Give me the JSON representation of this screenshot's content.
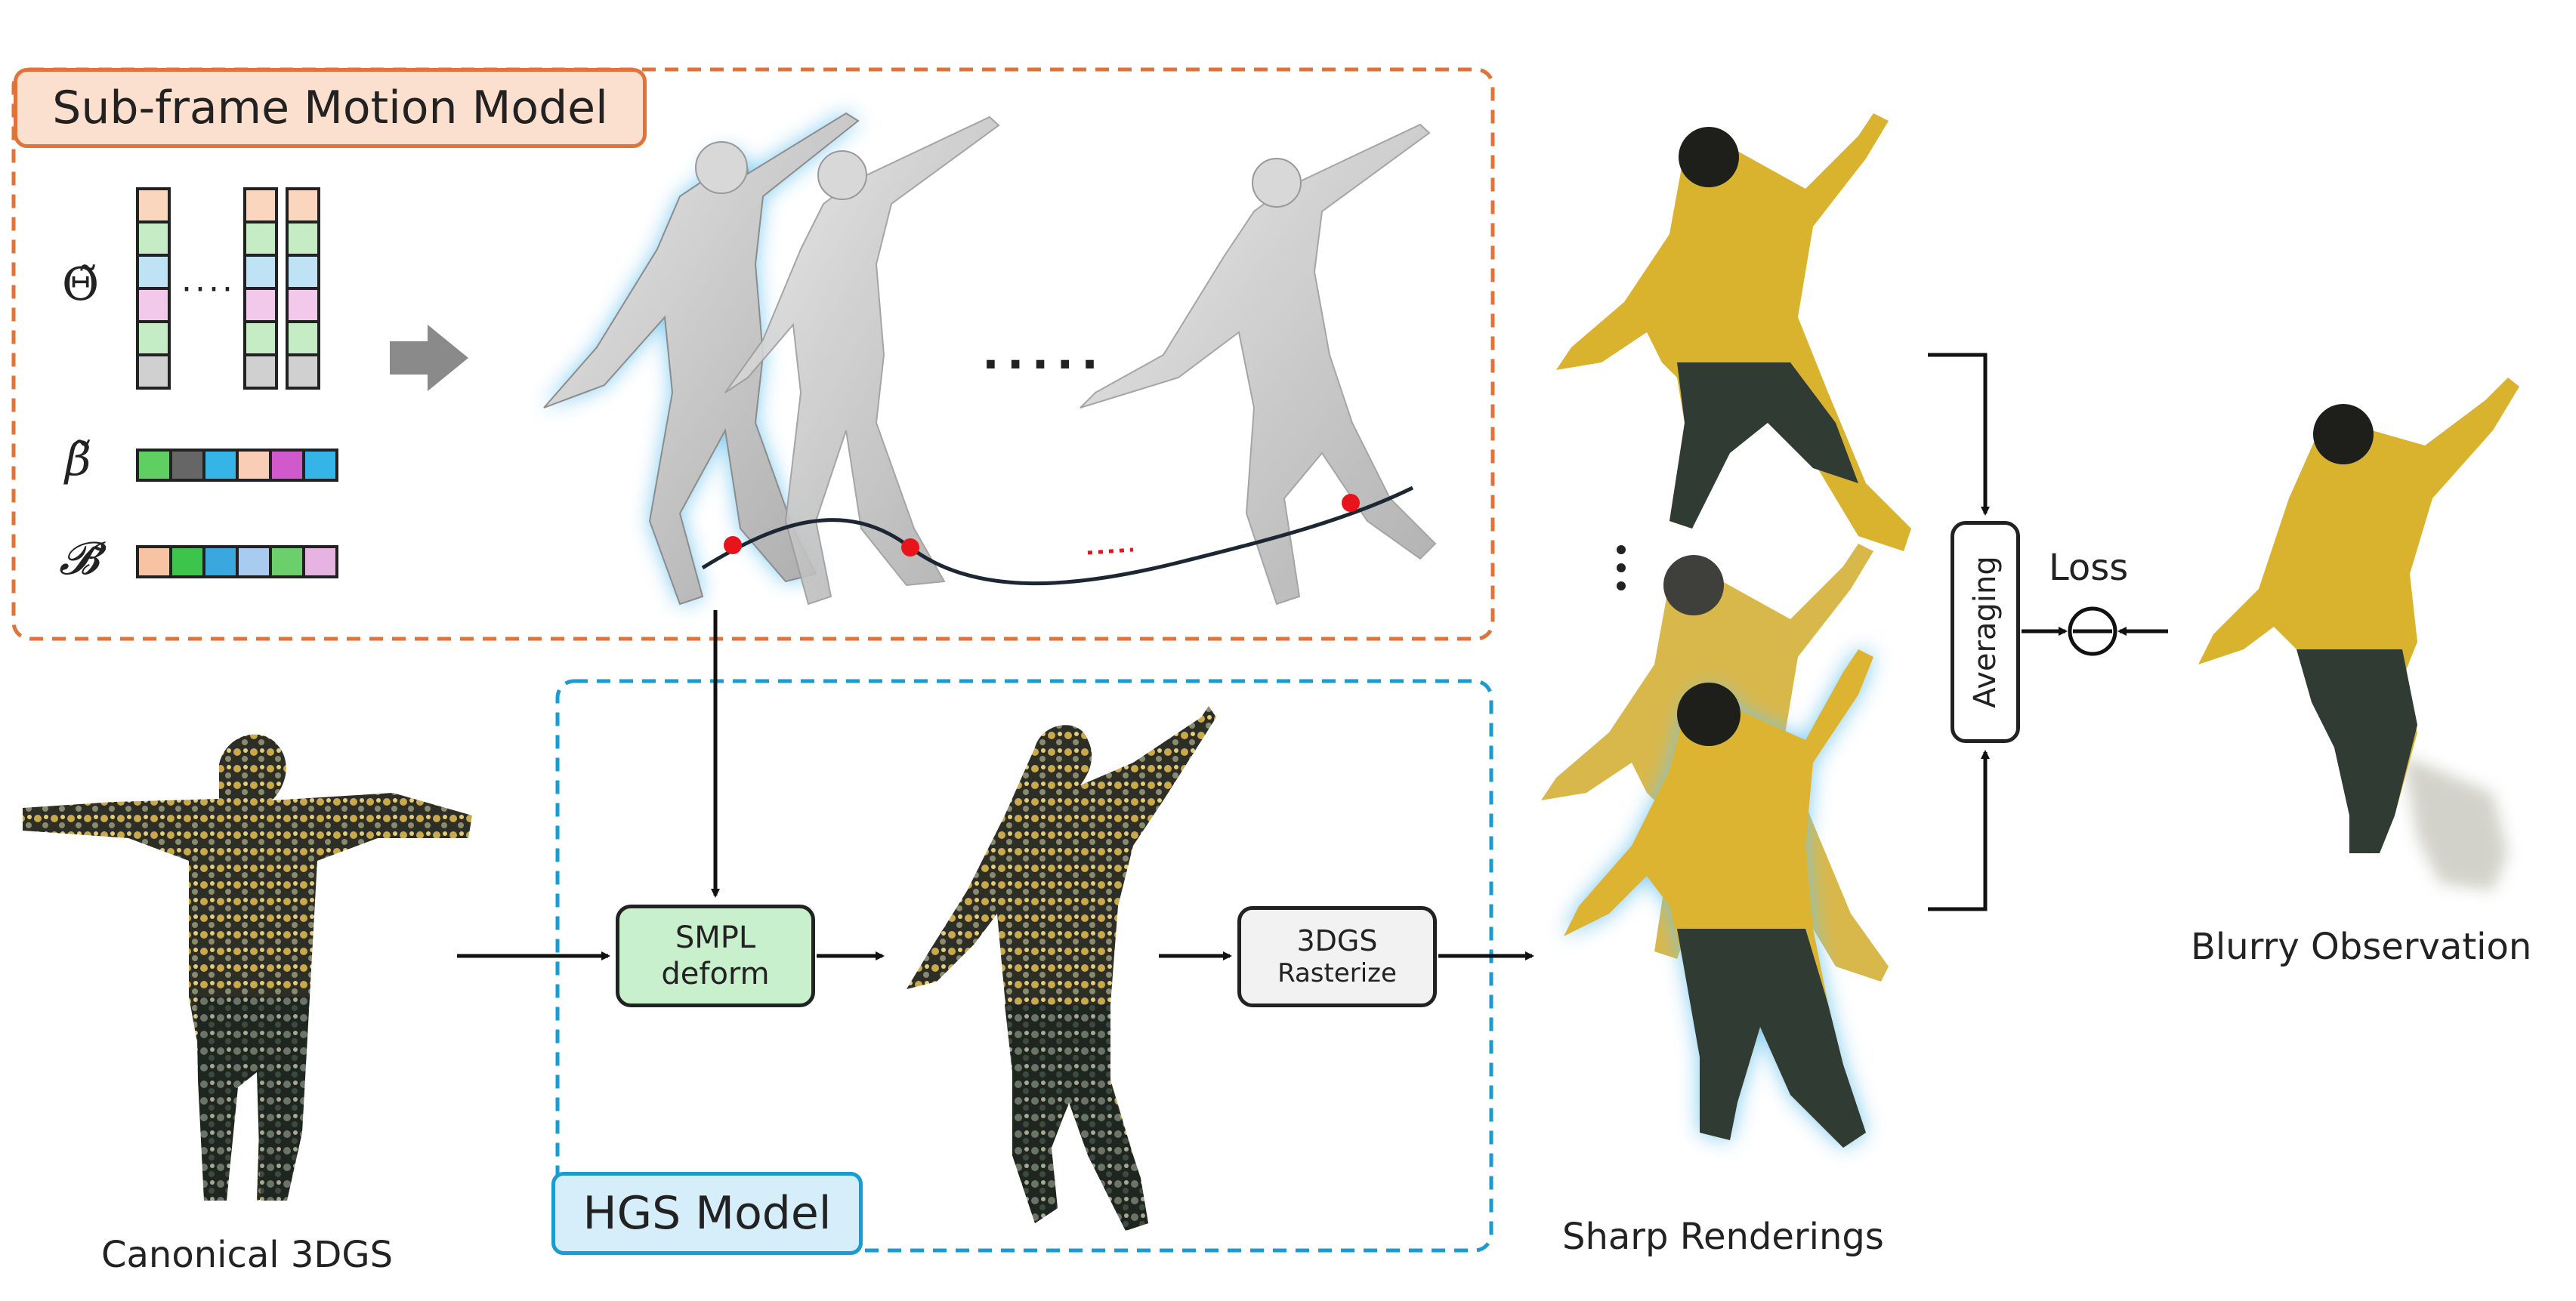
{
  "motion_model": {
    "title": "Sub-frame Motion Model"
  },
  "symbols": {
    "theta": "Θ̃",
    "beta": "β̃",
    "blend": "𝓑̃"
  },
  "hgs_model": {
    "title": "HGS Model"
  },
  "smpl_box": {
    "line1": "SMPL",
    "line2": "deform"
  },
  "raster_box": {
    "line1": "3DGS",
    "line2": "Rasterize"
  },
  "averaging": {
    "label": "Averaging"
  },
  "loss": {
    "label": "Loss"
  },
  "captions": {
    "canonical": "Canonical 3DGS",
    "sharp": "Sharp Renderings",
    "blurry": "Blurry Observation"
  },
  "colors": {
    "motion_border": "#e0733a",
    "hgs_border": "#1b9bd0",
    "smpl_fill": "#c9f0cc",
    "keypoint": "#e8141b"
  }
}
